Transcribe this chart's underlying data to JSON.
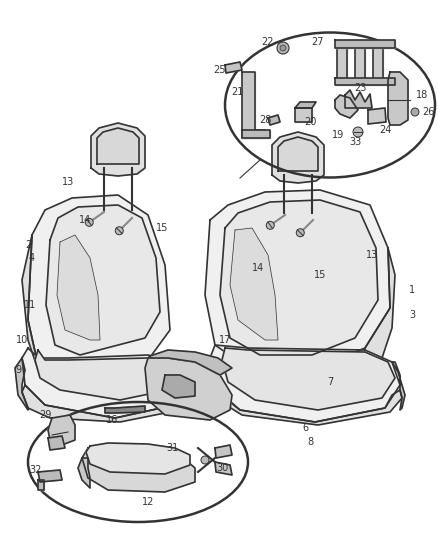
{
  "bg_color": "#ffffff",
  "line_color": "#333333",
  "label_color": "#333333",
  "fill_light": "#f0f0f0",
  "fill_mid": "#e0e0e0",
  "fill_dark": "#c8c8c8",
  "figsize": [
    4.38,
    5.33
  ],
  "dpi": 100,
  "seat_stroke": 1.2,
  "detail_stroke": 0.8
}
